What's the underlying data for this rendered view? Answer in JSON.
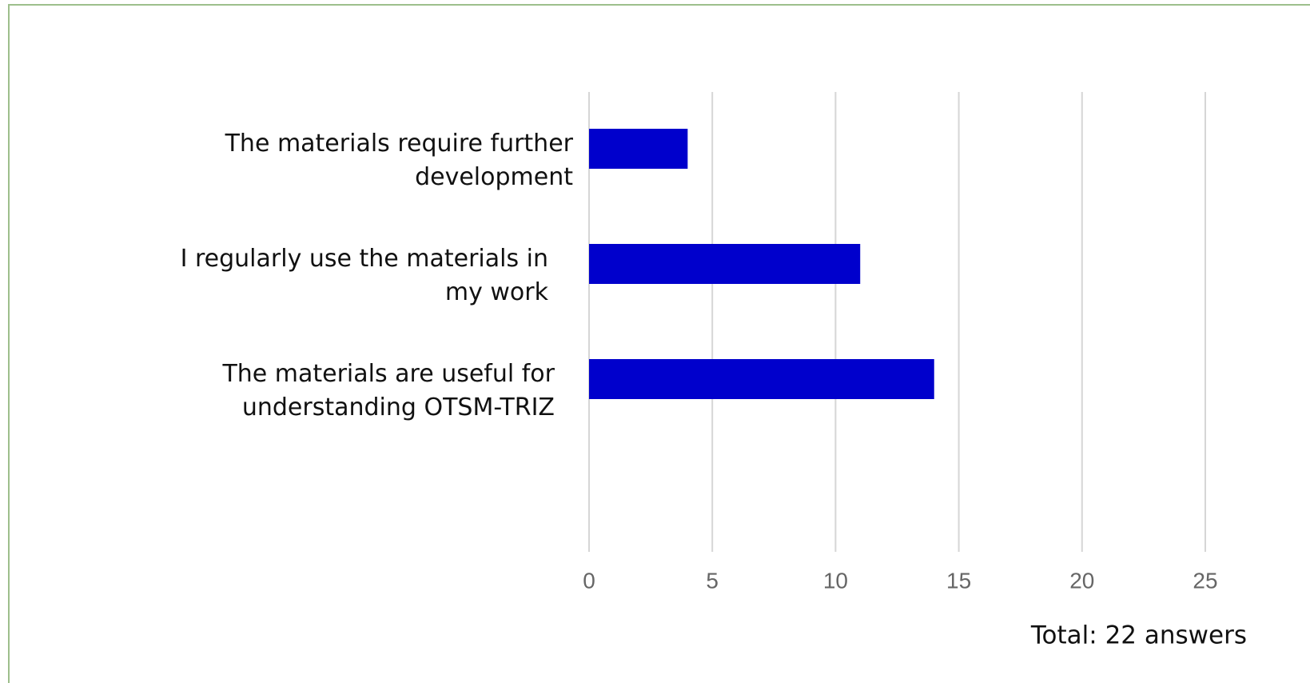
{
  "chart_data": {
    "type": "barh",
    "categories": [
      "The materials require further development",
      "I regularly use the materials in my work",
      "The materials are useful for understanding OTSM-TRIZ"
    ],
    "values": [
      4,
      11,
      14
    ],
    "color": "#0000cc",
    "xlim": [
      0,
      25
    ],
    "xticks": [
      0,
      5,
      10,
      15,
      20,
      25
    ],
    "grid": true,
    "annotation": "Total: 22 answers"
  }
}
